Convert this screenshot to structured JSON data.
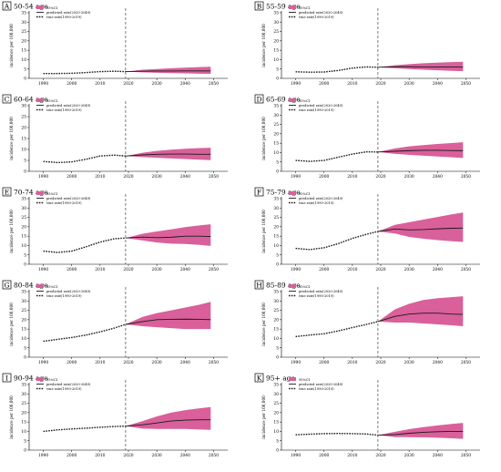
{
  "figure": {
    "chart_data": [
      {
        "panel": "A",
        "title": "50-54 age",
        "type": "line",
        "ylabel": "incidence per 100,000",
        "x_ticks": [
          1990,
          2000,
          2010,
          2020,
          2030,
          2040,
          2050
        ],
        "y_ticks": [
          0,
          5,
          10,
          15,
          20,
          25,
          30,
          35
        ],
        "ylim": [
          0,
          35
        ],
        "xlim": [
          1985,
          2055
        ],
        "split_year": 2019,
        "legend": [
          "95%CI",
          "predicted rate(2020-2049)",
          "true rate(1990-2019)"
        ],
        "true_rate": {
          "x": [
            1990,
            1995,
            2000,
            2005,
            2010,
            2015,
            2019
          ],
          "y": [
            2.6,
            2.6,
            2.7,
            3.1,
            3.6,
            3.8,
            3.6
          ]
        },
        "predicted": {
          "x": [
            2019,
            2025,
            2030,
            2035,
            2040,
            2045,
            2049
          ],
          "y": [
            3.6,
            3.8,
            3.9,
            3.9,
            4.0,
            4.0,
            4.0
          ]
        },
        "ci_upper": [
          3.6,
          4.6,
          5.0,
          5.4,
          5.7,
          6.0,
          6.2
        ],
        "ci_lower": [
          3.6,
          3.2,
          3.0,
          2.8,
          2.7,
          2.5,
          2.4
        ]
      },
      {
        "panel": "B",
        "title": "55-59 age",
        "type": "line",
        "ylabel": "incidence per 100,000",
        "x_ticks": [
          1990,
          2000,
          2010,
          2020,
          2030,
          2040,
          2050
        ],
        "y_ticks": [
          0,
          5,
          10,
          15,
          20,
          25,
          30,
          35
        ],
        "ylim": [
          0,
          35
        ],
        "xlim": [
          1985,
          2055
        ],
        "split_year": 2019,
        "legend": [
          "95%CI",
          "predicted rate(2020-2049)",
          "true rate(1990-2019)"
        ],
        "true_rate": {
          "x": [
            1990,
            1995,
            2000,
            2005,
            2010,
            2015,
            2019
          ],
          "y": [
            3.5,
            3.3,
            3.4,
            4.2,
            5.5,
            6.1,
            5.9
          ]
        },
        "predicted": {
          "x": [
            2019,
            2025,
            2030,
            2035,
            2040,
            2045,
            2049
          ],
          "y": [
            5.9,
            6.2,
            6.2,
            6.1,
            6.1,
            6.1,
            6.0
          ]
        },
        "ci_upper": [
          5.9,
          7.0,
          7.6,
          8.1,
          8.4,
          8.7,
          8.9
        ],
        "ci_lower": [
          5.9,
          5.4,
          5.0,
          4.6,
          4.3,
          4.0,
          3.8
        ]
      },
      {
        "panel": "C",
        "title": "60-64 age",
        "type": "line",
        "ylabel": "incidence per 100,000",
        "x_ticks": [
          1990,
          2000,
          2010,
          2020,
          2030,
          2040,
          2050
        ],
        "y_ticks": [
          0,
          5,
          10,
          15,
          20,
          25,
          30
        ],
        "ylim": [
          0,
          30
        ],
        "xlim": [
          1985,
          2055
        ],
        "split_year": 2019,
        "legend": [
          "95%CI",
          "predicted rate(2020-2049)",
          "true rate(1990-2019)"
        ],
        "true_rate": {
          "x": [
            1990,
            1995,
            2000,
            2005,
            2010,
            2015,
            2019
          ],
          "y": [
            4.5,
            4.0,
            4.3,
            5.5,
            7.0,
            7.4,
            7.0
          ]
        },
        "predicted": {
          "x": [
            2019,
            2025,
            2030,
            2035,
            2040,
            2045,
            2049
          ],
          "y": [
            7.0,
            7.5,
            7.8,
            7.9,
            7.9,
            7.8,
            7.8
          ]
        },
        "ci_upper": [
          7.0,
          8.5,
          9.3,
          9.9,
          10.3,
          10.6,
          10.8
        ],
        "ci_lower": [
          7.0,
          6.5,
          6.2,
          5.9,
          5.6,
          5.3,
          5.1
        ]
      },
      {
        "panel": "D",
        "title": "65-69 age",
        "type": "line",
        "ylabel": "incidence per 100,000",
        "x_ticks": [
          1990,
          2000,
          2010,
          2020,
          2030,
          2040,
          2050
        ],
        "y_ticks": [
          0,
          5,
          10,
          15,
          20,
          25,
          30,
          35
        ],
        "ylim": [
          0,
          35
        ],
        "xlim": [
          1985,
          2055
        ],
        "split_year": 2019,
        "legend": [
          "95%CI",
          "predicted rate(2020-2049)",
          "true rate(1990-2019)"
        ],
        "true_rate": {
          "x": [
            1990,
            1995,
            2000,
            2005,
            2010,
            2015,
            2019
          ],
          "y": [
            5.8,
            5.3,
            5.8,
            7.5,
            9.2,
            10.4,
            10.3
          ]
        },
        "predicted": {
          "x": [
            2019,
            2025,
            2030,
            2035,
            2040,
            2045,
            2049
          ],
          "y": [
            10.3,
            10.7,
            11.0,
            11.2,
            11.2,
            11.1,
            11.0
          ]
        },
        "ci_upper": [
          10.3,
          12.2,
          13.3,
          14.0,
          14.6,
          15.1,
          15.5
        ],
        "ci_lower": [
          10.3,
          9.3,
          8.8,
          8.3,
          7.9,
          7.5,
          7.1
        ]
      },
      {
        "panel": "E",
        "title": "70-74 age",
        "type": "line",
        "ylabel": "incidence per 100,000",
        "x_ticks": [
          1990,
          2000,
          2010,
          2020,
          2030,
          2040,
          2050
        ],
        "y_ticks": [
          0,
          5,
          10,
          15,
          20,
          25,
          30,
          35
        ],
        "ylim": [
          0,
          35
        ],
        "xlim": [
          1985,
          2055
        ],
        "split_year": 2019,
        "legend": [
          "95%CI",
          "predicted rate(2020-2049)",
          "true rate(1990-2019)"
        ],
        "true_rate": {
          "x": [
            1990,
            1995,
            2000,
            2005,
            2010,
            2015,
            2019
          ],
          "y": [
            7.0,
            6.3,
            7.0,
            9.3,
            11.8,
            13.6,
            14.0
          ]
        },
        "predicted": {
          "x": [
            2019,
            2025,
            2030,
            2035,
            2040,
            2045,
            2049
          ],
          "y": [
            14.0,
            14.5,
            14.2,
            14.4,
            15.0,
            15.0,
            14.8
          ]
        },
        "ci_upper": [
          14.0,
          16.3,
          17.5,
          18.6,
          19.8,
          20.7,
          21.3
        ],
        "ci_lower": [
          14.0,
          12.7,
          11.6,
          11.0,
          10.8,
          10.3,
          9.8
        ]
      },
      {
        "panel": "F",
        "title": "75-79 age",
        "type": "line",
        "ylabel": "incidence per 100,000",
        "x_ticks": [
          1990,
          2000,
          2010,
          2020,
          2030,
          2040,
          2050
        ],
        "y_ticks": [
          0,
          5,
          10,
          15,
          20,
          25,
          30,
          35
        ],
        "ylim": [
          0,
          35
        ],
        "xlim": [
          1985,
          2055
        ],
        "split_year": 2019,
        "legend": [
          "95%CI",
          "predicted rate(2020-2049)",
          "true rate(1990-2019)"
        ],
        "true_rate": {
          "x": [
            1990,
            1995,
            2000,
            2005,
            2010,
            2015,
            2019
          ],
          "y": [
            8.5,
            7.8,
            8.8,
            11.0,
            13.8,
            16.0,
            17.5
          ]
        },
        "predicted": {
          "x": [
            2019,
            2025,
            2030,
            2035,
            2040,
            2045,
            2049
          ],
          "y": [
            17.5,
            18.8,
            18.3,
            18.5,
            18.9,
            19.2,
            19.3
          ]
        },
        "ci_upper": [
          17.5,
          21.0,
          22.4,
          23.8,
          25.2,
          26.6,
          27.6
        ],
        "ci_lower": [
          17.5,
          16.4,
          14.6,
          13.6,
          12.9,
          12.3,
          11.9
        ]
      },
      {
        "panel": "G",
        "title": "80-84 age",
        "type": "line",
        "ylabel": "incidence per 100,000",
        "x_ticks": [
          1990,
          2000,
          2010,
          2020,
          2030,
          2040,
          2050
        ],
        "y_ticks": [
          0,
          5,
          10,
          15,
          20,
          25,
          30,
          35
        ],
        "ylim": [
          0,
          35
        ],
        "xlim": [
          1985,
          2055
        ],
        "split_year": 2019,
        "legend": [
          "95%CI",
          "predicted rate(2020-2049)",
          "true rate(1990-2019)"
        ],
        "true_rate": {
          "x": [
            1990,
            1995,
            2000,
            2005,
            2010,
            2015,
            2019
          ],
          "y": [
            8.5,
            9.5,
            10.5,
            11.8,
            13.5,
            15.5,
            17.5
          ]
        },
        "predicted": {
          "x": [
            2019,
            2025,
            2030,
            2035,
            2040,
            2045,
            2049
          ],
          "y": [
            17.5,
            19.0,
            20.0,
            20.2,
            20.3,
            20.2,
            20.0
          ]
        },
        "ci_upper": [
          17.5,
          21.5,
          23.5,
          25.0,
          26.5,
          28.0,
          29.5
        ],
        "ci_lower": [
          17.5,
          16.5,
          16.0,
          15.5,
          15.0,
          15.0,
          15.0
        ]
      },
      {
        "panel": "H",
        "title": "85-89 age",
        "type": "line",
        "ylabel": "incidence per 100,000",
        "x_ticks": [
          1990,
          2000,
          2010,
          2020,
          2030,
          2040,
          2050
        ],
        "y_ticks": [
          0,
          5,
          10,
          15,
          20,
          25,
          30,
          35
        ],
        "ylim": [
          0,
          35
        ],
        "xlim": [
          1985,
          2055
        ],
        "split_year": 2019,
        "legend": [
          "95%CI",
          "predicted rate(2020-2049)",
          "true rate(1990-2019)"
        ],
        "true_rate": {
          "x": [
            1990,
            1995,
            2000,
            2005,
            2010,
            2015,
            2019
          ],
          "y": [
            11.0,
            11.8,
            12.5,
            14.0,
            15.8,
            17.5,
            19.0
          ]
        },
        "predicted": {
          "x": [
            2019,
            2025,
            2030,
            2035,
            2040,
            2045,
            2049
          ],
          "y": [
            19.0,
            21.8,
            23.0,
            23.5,
            23.5,
            23.0,
            22.8
          ]
        },
        "ci_upper": [
          19.0,
          25.5,
          28.5,
          30.5,
          31.5,
          32.0,
          32.5
        ],
        "ci_lower": [
          19.0,
          18.5,
          18.5,
          18.0,
          17.5,
          17.0,
          16.5
        ]
      },
      {
        "panel": "I",
        "title": "90-94 age",
        "type": "line",
        "ylabel": "incidence per 100,000",
        "x_ticks": [
          1990,
          2000,
          2010,
          2020,
          2030,
          2040,
          2050
        ],
        "y_ticks": [
          0,
          5,
          10,
          15,
          20,
          25,
          30,
          35
        ],
        "ylim": [
          0,
          35
        ],
        "xlim": [
          1985,
          2055
        ],
        "split_year": 2019,
        "legend": [
          "95%CI",
          "predicted rate(2020-2049)",
          "true rate(1990-2019)"
        ],
        "true_rate": {
          "x": [
            1990,
            1995,
            2000,
            2005,
            2010,
            2015,
            2019
          ],
          "y": [
            10.0,
            10.8,
            11.3,
            11.7,
            12.2,
            12.6,
            12.8
          ]
        },
        "predicted": {
          "x": [
            2019,
            2025,
            2030,
            2035,
            2040,
            2045,
            2049
          ],
          "y": [
            12.8,
            13.5,
            14.5,
            15.5,
            16.0,
            16.2,
            16.2
          ]
        },
        "ci_upper": [
          12.8,
          15.5,
          18.0,
          20.0,
          21.3,
          22.3,
          23.0
        ],
        "ci_lower": [
          12.8,
          11.5,
          11.3,
          11.3,
          11.3,
          11.0,
          10.8
        ]
      },
      {
        "panel": "K",
        "title": "95+ age",
        "type": "line",
        "ylabel": "incidence per 100,000",
        "x_ticks": [
          1990,
          2000,
          2010,
          2020,
          2030,
          2040,
          2050
        ],
        "y_ticks": [
          0,
          5,
          10,
          15,
          20,
          25,
          30,
          35
        ],
        "ylim": [
          0,
          35
        ],
        "xlim": [
          1985,
          2055
        ],
        "split_year": 2019,
        "legend": [
          "95%CI",
          "predicted rate(2020-2049)",
          "true rate(1990-2019)"
        ],
        "true_rate": {
          "x": [
            1990,
            1995,
            2000,
            2005,
            2010,
            2015,
            2019
          ],
          "y": [
            8.2,
            8.5,
            8.8,
            8.9,
            8.8,
            8.6,
            8.0
          ]
        },
        "predicted": {
          "x": [
            2019,
            2025,
            2030,
            2035,
            2040,
            2045,
            2049
          ],
          "y": [
            8.0,
            8.3,
            9.0,
            9.5,
            9.8,
            10.0,
            10.0
          ]
        },
        "ci_upper": [
          8.0,
          9.8,
          11.2,
          12.3,
          13.2,
          14.0,
          14.5
        ],
        "ci_lower": [
          8.0,
          7.0,
          6.9,
          6.8,
          6.6,
          6.3,
          6.0
        ]
      }
    ],
    "colors": {
      "ci_fill": "#d9609a",
      "line": "#1a1a1a",
      "divider": "#444444"
    }
  }
}
